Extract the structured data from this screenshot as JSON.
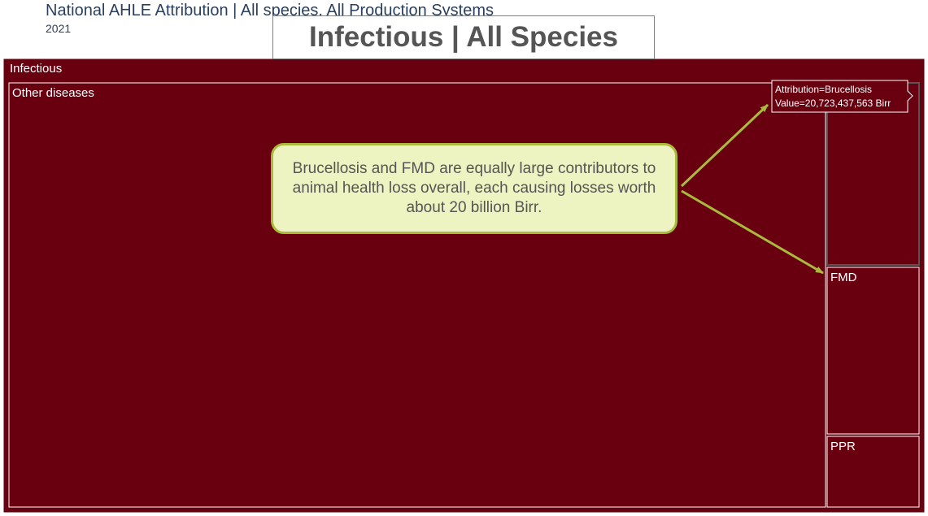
{
  "header": {
    "title": "National AHLE Attribution | All species, All Production Systems",
    "year": "2021"
  },
  "title_box": {
    "text": "Infectious | All Species"
  },
  "callout": {
    "text": "Brucellosis and FMD are equally large contributors to animal health loss overall, each causing losses worth about 20 billion Birr."
  },
  "hover": {
    "line1": "Attribution=Brucellosis",
    "line2": "Value=20,723,437,563 Birr"
  },
  "colors": {
    "tile": "#690010",
    "tile_border": "#ffffff",
    "arrow": "#a9bb3c",
    "callout_fill": "#eef3c2",
    "title_text": "#555555",
    "header_text": "#2a3f5f"
  },
  "chart_data": {
    "type": "treemap",
    "root": "Infectious",
    "tiles": [
      {
        "label": "Other diseases"
      },
      {
        "label": "Brucellosis",
        "value": 20723437563
      },
      {
        "label": "FMD"
      },
      {
        "label": "PPR"
      }
    ]
  }
}
